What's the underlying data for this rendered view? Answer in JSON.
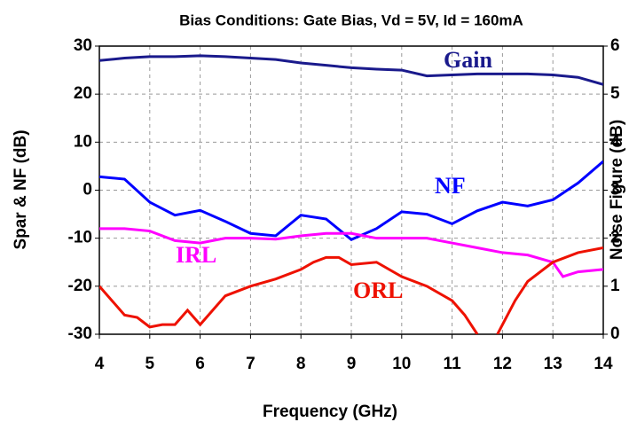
{
  "chart_data": {
    "type": "line",
    "title": "Bias Conditions: Gate Bias, Vd = 5V, Id = 160mA",
    "xlabel": "Frequency (GHz)",
    "ylabel": "Spar & NF (dB)",
    "y2label": "Noise Figure (dB)",
    "xlim": [
      4,
      14
    ],
    "xticks": [
      4,
      5,
      6,
      7,
      8,
      9,
      10,
      11,
      12,
      13,
      14
    ],
    "ylim": [
      -30,
      30
    ],
    "yticks": [
      -30,
      -20,
      -10,
      0,
      10,
      20,
      30
    ],
    "y2lim": [
      0,
      6
    ],
    "y2ticks": [
      0,
      1,
      2,
      3,
      4,
      5,
      6
    ],
    "grid": true,
    "series": [
      {
        "name": "Gain",
        "color": "#1a1a8c",
        "x": [
          4,
          4.5,
          5,
          5.5,
          6,
          6.5,
          7,
          7.5,
          8,
          8.5,
          9,
          9.5,
          10,
          10.5,
          11,
          11.5,
          12,
          12.5,
          13,
          13.5,
          14
        ],
        "values": [
          27,
          27.5,
          27.8,
          27.8,
          28,
          27.8,
          27.5,
          27.2,
          26.5,
          26,
          25.5,
          25.2,
          25,
          23.8,
          24,
          24.2,
          24.2,
          24.2,
          24,
          23.5,
          22
        ]
      },
      {
        "name": "NF",
        "color": "#0000ff",
        "axis": "y2",
        "x": [
          4,
          4.5,
          5,
          5.5,
          6,
          6.5,
          7,
          7.5,
          8,
          8.5,
          9,
          9.5,
          10,
          10.5,
          11,
          11.5,
          12,
          12.5,
          13,
          13.5,
          14
        ],
        "values": [
          3.28,
          3.23,
          2.75,
          2.48,
          2.58,
          2.35,
          2.1,
          2.05,
          2.48,
          2.4,
          1.97,
          2.2,
          2.55,
          2.5,
          2.3,
          2.57,
          2.75,
          2.67,
          2.8,
          3.15,
          3.6
        ]
      },
      {
        "name": "IRL",
        "color": "#ff00ff",
        "x": [
          4,
          4.5,
          5,
          5.5,
          6,
          6.5,
          7,
          7.5,
          8,
          8.5,
          9,
          9.5,
          10,
          10.5,
          11,
          11.5,
          12,
          12.5,
          13,
          13.2,
          13.5,
          14
        ],
        "values": [
          -8,
          -8,
          -8.5,
          -10.5,
          -11,
          -10,
          -10,
          -10.2,
          -9.5,
          -9,
          -9,
          -10,
          -10,
          -10,
          -11,
          -12,
          -13,
          -13.5,
          -15,
          -18,
          -17,
          -16.5
        ]
      },
      {
        "name": "ORL",
        "color": "#ee1100",
        "x": [
          4,
          4.25,
          4.5,
          4.75,
          5,
          5.25,
          5.5,
          5.75,
          6,
          6.25,
          6.5,
          7,
          7.5,
          8,
          8.25,
          8.5,
          8.75,
          9,
          9.5,
          10,
          10.5,
          11,
          11.25,
          11.5,
          11.7,
          11.9,
          12.25,
          12.5,
          13,
          13.5,
          14
        ],
        "values": [
          -20,
          -23,
          -26,
          -26.5,
          -28.5,
          -28,
          -28,
          -25,
          -28,
          -25,
          -22,
          -20,
          -18.5,
          -16.5,
          -15,
          -14,
          -14,
          -15.5,
          -15,
          -18,
          -20,
          -23,
          -26,
          -30,
          null,
          -30,
          -23,
          -19,
          -15,
          -13,
          -12
        ]
      }
    ]
  }
}
